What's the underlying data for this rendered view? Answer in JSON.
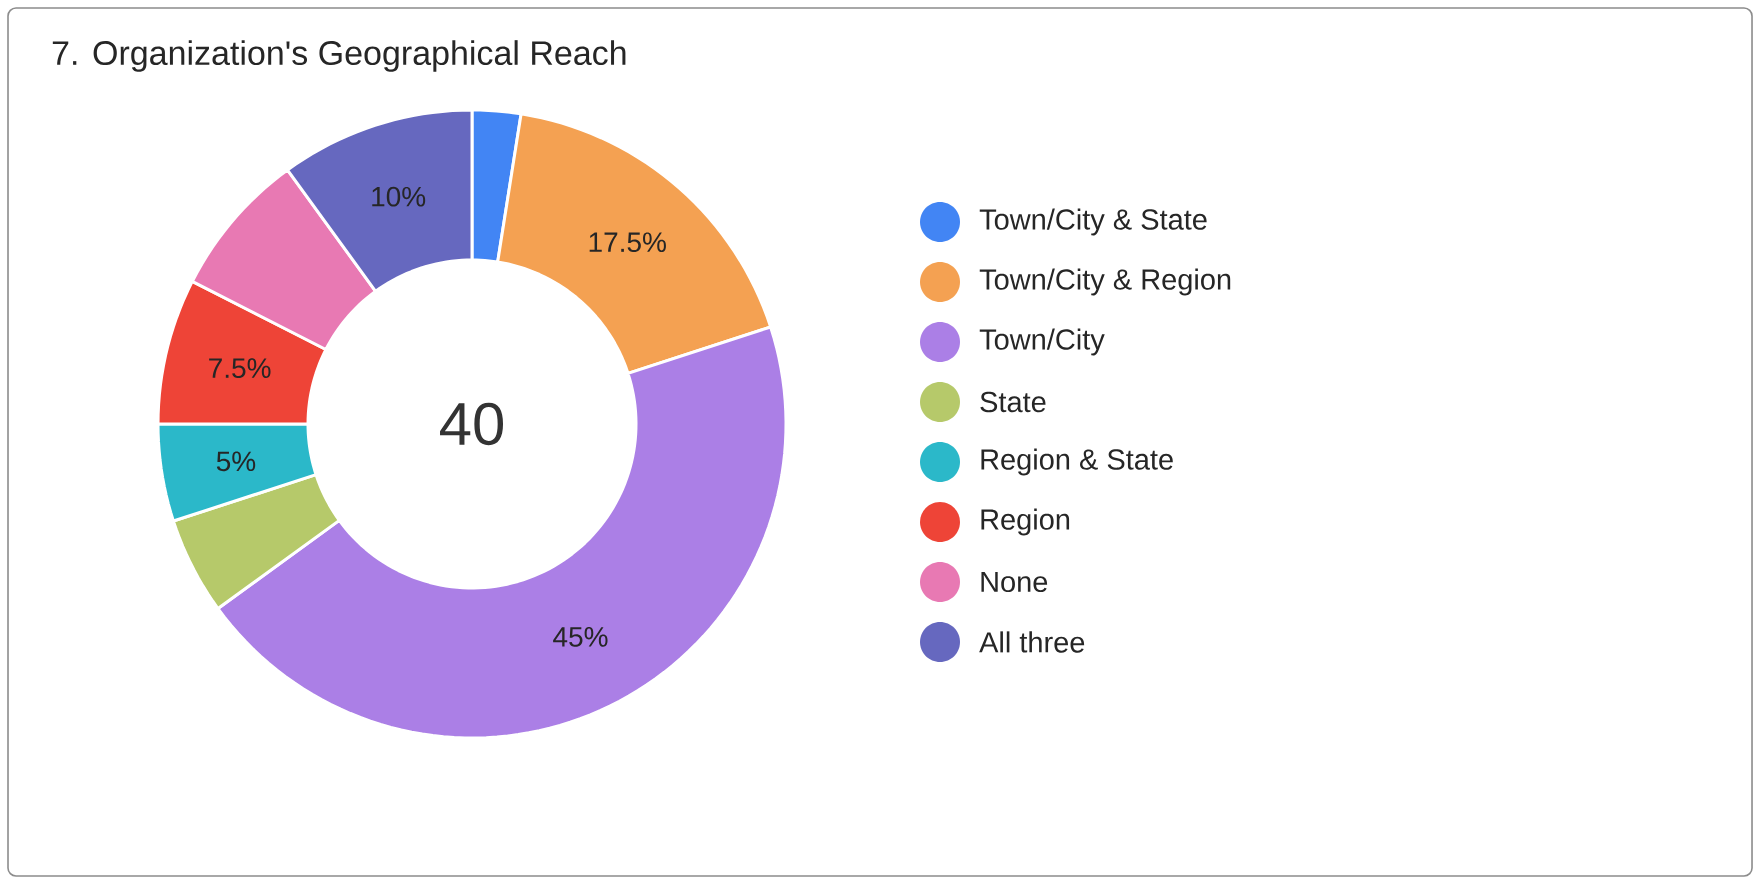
{
  "chart_data": {
    "type": "donut",
    "title": "7. Organization's Geographical Reach",
    "categories": [
      "Town/City & State",
      "Town/City & Region",
      "Town/City",
      "State",
      "Region & State",
      "Region",
      "None",
      "All three"
    ],
    "values": [
      2.5,
      17.5,
      45,
      5,
      5,
      7.5,
      7.5,
      10
    ],
    "colors": [
      "#4285f4",
      "#f4a152",
      "#ab7fe6",
      "#b6c96a",
      "#2bb8c9",
      "#ee4437",
      "#e879b3",
      "#6668bf"
    ],
    "value_labels": [
      null,
      "17.5%",
      "45%",
      null,
      "5%",
      "7.5%",
      null,
      "10%"
    ],
    "annotations": [
      "40"
    ],
    "legend": "right"
  }
}
